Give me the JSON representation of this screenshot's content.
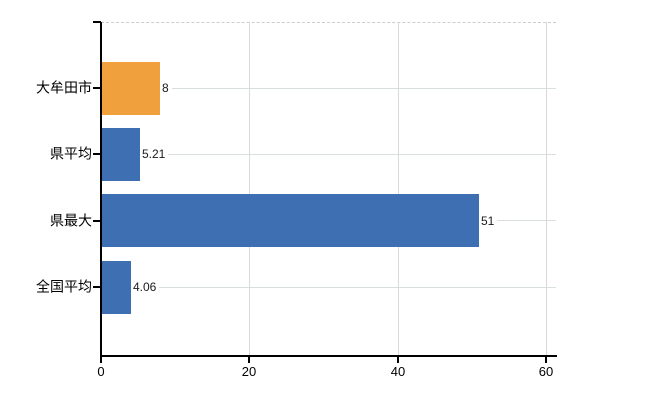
{
  "chart_data": {
    "type": "bar",
    "orientation": "horizontal",
    "title": "",
    "categories": [
      "大牟田市",
      "県平均",
      "県最大",
      "全国平均"
    ],
    "values": [
      8,
      5.21,
      51,
      4.06
    ],
    "value_labels": [
      "8",
      "5.21",
      "51",
      "4.06"
    ],
    "series_colors": [
      "#F0A03C",
      "#3E6FB2",
      "#3E6FB2",
      "#3E6FB2"
    ],
    "x_axis": {
      "ticks": [
        0,
        20,
        40,
        60
      ],
      "tick_labels": [
        "0",
        "20",
        "40",
        "60"
      ],
      "range": [
        0,
        60
      ]
    },
    "grid": true,
    "legend": false
  },
  "colors": {
    "highlight_bar": "#F0A03C",
    "default_bar": "#3E6FB2",
    "axis": "#000000",
    "gridline": "#D9D9D9",
    "row_line": "#D9DFD9",
    "plot_border_dashed": "#C9CFC9",
    "text": "#1A1A1A",
    "background": "#FFFFFF"
  }
}
